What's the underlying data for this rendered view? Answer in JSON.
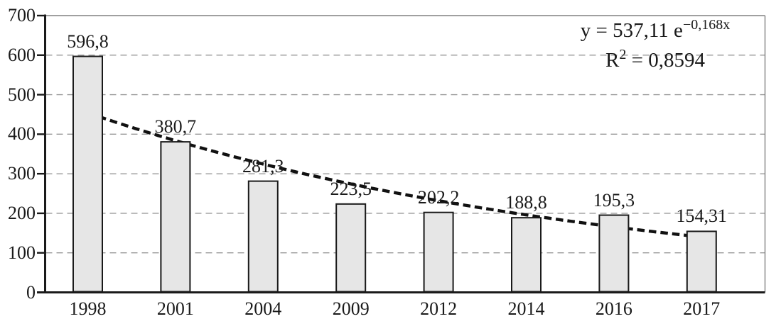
{
  "chart_data": {
    "type": "bar",
    "categories": [
      "1998",
      "2001",
      "2004",
      "2009",
      "2012",
      "2014",
      "2016",
      "2017"
    ],
    "values": [
      596.8,
      380.7,
      281.3,
      223.5,
      202.2,
      188.8,
      195.3,
      154.31
    ],
    "value_labels": [
      "596,8",
      "380,7",
      "281,3",
      "223,5",
      "202,2",
      "188,8",
      "195,3",
      "154,31"
    ],
    "title": "",
    "xlabel": "",
    "ylabel": "",
    "ylim": [
      0,
      700
    ],
    "y_ticks": [
      0,
      100,
      200,
      300,
      400,
      500,
      600,
      700
    ],
    "grid": "horizontal-dashed",
    "legend": "none",
    "trendline": {
      "type": "exponential",
      "coefficient_a": 537.11,
      "decay_b": 0.168,
      "equation_prefix": "y = 537,11 e",
      "equation_exponent": "−0,168x",
      "r2_base": "R",
      "r2_exponent": "2",
      "r2_suffix": " = 0,8594"
    },
    "colors": {
      "background": "#ffffff",
      "bar_fill": "#e6e6e6",
      "bar_border": "#1a1a1a",
      "gridline": "#999999",
      "plot_border": "#808080",
      "axis": "#1a1a1a",
      "trendline": "#111111",
      "text": "#1a1a1a"
    }
  }
}
